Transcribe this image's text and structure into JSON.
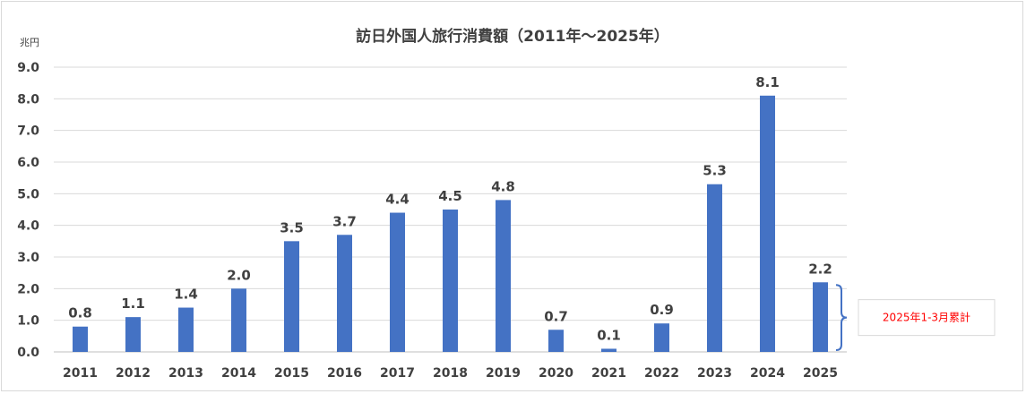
{
  "chart_data": {
    "type": "bar",
    "title": "訪日外国人旅行消費額（2011年～2025年）",
    "ylabel": "兆円",
    "xlabel": "",
    "ylim": [
      0,
      9
    ],
    "yticks": [
      "0.0",
      "1.0",
      "2.0",
      "3.0",
      "4.0",
      "5.0",
      "6.0",
      "7.0",
      "8.0",
      "9.0"
    ],
    "categories": [
      "2011",
      "2012",
      "2013",
      "2014",
      "2015",
      "2016",
      "2017",
      "2018",
      "2019",
      "2020",
      "2021",
      "2022",
      "2023",
      "2024",
      "2025"
    ],
    "values": [
      0.8,
      1.1,
      1.4,
      2.0,
      3.5,
      3.7,
      4.4,
      4.5,
      4.8,
      0.7,
      0.1,
      0.9,
      5.3,
      8.1,
      2.2
    ],
    "value_labels": [
      "0.8",
      "1.1",
      "1.4",
      "2.0",
      "3.5",
      "3.7",
      "4.4",
      "4.5",
      "4.8",
      "0.7",
      "0.1",
      "0.9",
      "5.3",
      "8.1",
      "2.2"
    ],
    "grid": true,
    "bar_color": "#4472c4",
    "annotation": {
      "text": "2025年1-3月累計",
      "target_category": "2025",
      "color": "#ff0000"
    }
  }
}
